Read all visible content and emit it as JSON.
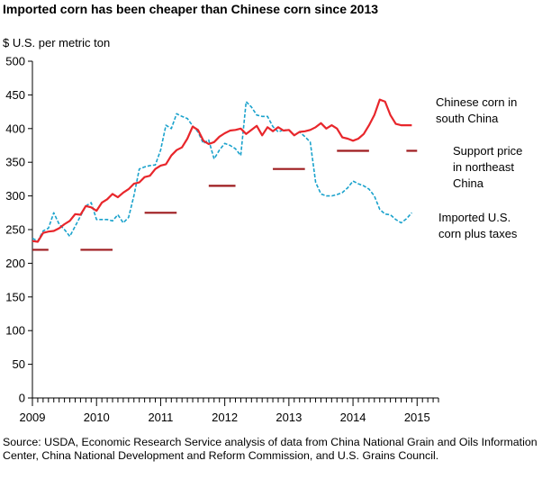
{
  "title": "Imported corn has been cheaper than Chinese corn since 2013",
  "unit_label": "$ U.S. per metric ton",
  "source": "Source: USDA, Economic Research Service analysis of data from China National Grain and Oils Information Center, China National Development and Reform Commission, and U.S. Grains Council.",
  "colors": {
    "chinese": "#e8262b",
    "imported": "#1aa2cc",
    "support": "#9e1b1f"
  },
  "chart_data": {
    "type": "line",
    "title": "Imported corn has been cheaper than Chinese corn since 2013",
    "ylabel": "$ U.S. per metric ton",
    "xlim": [
      2009,
      2015.333
    ],
    "ylim": [
      0,
      500
    ],
    "yticks": [
      0,
      50,
      100,
      150,
      200,
      250,
      300,
      350,
      400,
      450,
      500
    ],
    "xticks": [
      2009,
      2010,
      2011,
      2012,
      2013,
      2014,
      2015
    ],
    "grid": false,
    "series": [
      {
        "name": "Chinese corn in south China",
        "style": "solid",
        "color": "#e8262b",
        "x": [
          2009.0,
          2009.083,
          2009.167,
          2009.25,
          2009.333,
          2009.417,
          2009.5,
          2009.583,
          2009.667,
          2009.75,
          2009.833,
          2009.917,
          2010.0,
          2010.083,
          2010.167,
          2010.25,
          2010.333,
          2010.417,
          2010.5,
          2010.583,
          2010.667,
          2010.75,
          2010.833,
          2010.917,
          2011.0,
          2011.083,
          2011.167,
          2011.25,
          2011.333,
          2011.417,
          2011.5,
          2011.583,
          2011.667,
          2011.75,
          2011.833,
          2011.917,
          2012.0,
          2012.083,
          2012.167,
          2012.25,
          2012.333,
          2012.417,
          2012.5,
          2012.583,
          2012.667,
          2012.75,
          2012.833,
          2012.917,
          2013.0,
          2013.083,
          2013.167,
          2013.25,
          2013.333,
          2013.417,
          2013.5,
          2013.583,
          2013.667,
          2013.75,
          2013.833,
          2013.917,
          2014.0,
          2014.083,
          2014.167,
          2014.25,
          2014.333,
          2014.417,
          2014.5,
          2014.583,
          2014.667,
          2014.75,
          2014.833,
          2014.917
        ],
        "values": [
          233,
          232,
          245,
          247,
          248,
          252,
          258,
          263,
          273,
          272,
          285,
          283,
          278,
          290,
          295,
          303,
          298,
          305,
          310,
          318,
          320,
          328,
          330,
          340,
          345,
          347,
          360,
          368,
          372,
          385,
          403,
          398,
          382,
          377,
          380,
          388,
          393,
          397,
          398,
          400,
          392,
          398,
          404,
          390,
          402,
          396,
          402,
          397,
          398,
          390,
          395,
          396,
          398,
          402,
          408,
          400,
          405,
          400,
          387,
          385,
          382,
          385,
          392,
          405,
          420,
          443,
          440,
          420,
          407,
          405,
          405,
          405
        ]
      },
      {
        "name": "Imported U.S. corn plus taxes",
        "style": "dashed",
        "color": "#1aa2cc",
        "x": [
          2009.0,
          2009.083,
          2009.167,
          2009.25,
          2009.333,
          2009.417,
          2009.5,
          2009.583,
          2009.667,
          2009.75,
          2009.833,
          2009.917,
          2010.0,
          2010.083,
          2010.167,
          2010.25,
          2010.333,
          2010.417,
          2010.5,
          2010.583,
          2010.667,
          2010.75,
          2010.833,
          2010.917,
          2011.0,
          2011.083,
          2011.167,
          2011.25,
          2011.333,
          2011.417,
          2011.5,
          2011.583,
          2011.667,
          2011.75,
          2011.833,
          2011.917,
          2012.0,
          2012.083,
          2012.167,
          2012.25,
          2012.333,
          2012.417,
          2012.5,
          2012.583,
          2012.667,
          2012.75,
          2012.833,
          2012.917,
          2013.0,
          2013.083,
          2013.167,
          2013.25,
          2013.333,
          2013.417,
          2013.5,
          2013.583,
          2013.667,
          2013.75,
          2013.833,
          2013.917,
          2014.0,
          2014.083,
          2014.167,
          2014.25,
          2014.333,
          2014.417,
          2014.5,
          2014.583,
          2014.667,
          2014.75,
          2014.833,
          2014.917
        ],
        "values": [
          237,
          233,
          248,
          252,
          275,
          258,
          250,
          240,
          255,
          270,
          285,
          290,
          265,
          265,
          265,
          263,
          272,
          260,
          268,
          300,
          340,
          343,
          345,
          346,
          368,
          405,
          400,
          422,
          418,
          415,
          404,
          395,
          378,
          383,
          355,
          368,
          378,
          375,
          370,
          360,
          440,
          432,
          420,
          418,
          418,
          403,
          395,
          398,
          398,
          390,
          395,
          388,
          380,
          320,
          303,
          300,
          300,
          302,
          305,
          312,
          322,
          318,
          315,
          310,
          300,
          280,
          273,
          272,
          265,
          260,
          266,
          275
        ]
      },
      {
        "name": "Support price in northeast China",
        "style": "segments",
        "color": "#9e1b1f",
        "segments": [
          {
            "x": [
              2009.0,
              2009.25
            ],
            "value": 220
          },
          {
            "x": [
              2009.75,
              2010.25
            ],
            "value": 220
          },
          {
            "x": [
              2010.75,
              2011.25
            ],
            "value": 275
          },
          {
            "x": [
              2011.75,
              2012.167
            ],
            "value": 315
          },
          {
            "x": [
              2012.75,
              2013.25
            ],
            "value": 340
          },
          {
            "x": [
              2013.75,
              2014.25
            ],
            "value": 367
          },
          {
            "x": [
              2014.833,
              2015.0
            ],
            "value": 367
          }
        ]
      }
    ],
    "legend_labels": {
      "chinese": [
        "Chinese corn in",
        "south China"
      ],
      "support": [
        "Support price",
        "in northeast",
        "China"
      ],
      "imported": [
        "Imported U.S.",
        "corn plus taxes"
      ]
    }
  }
}
